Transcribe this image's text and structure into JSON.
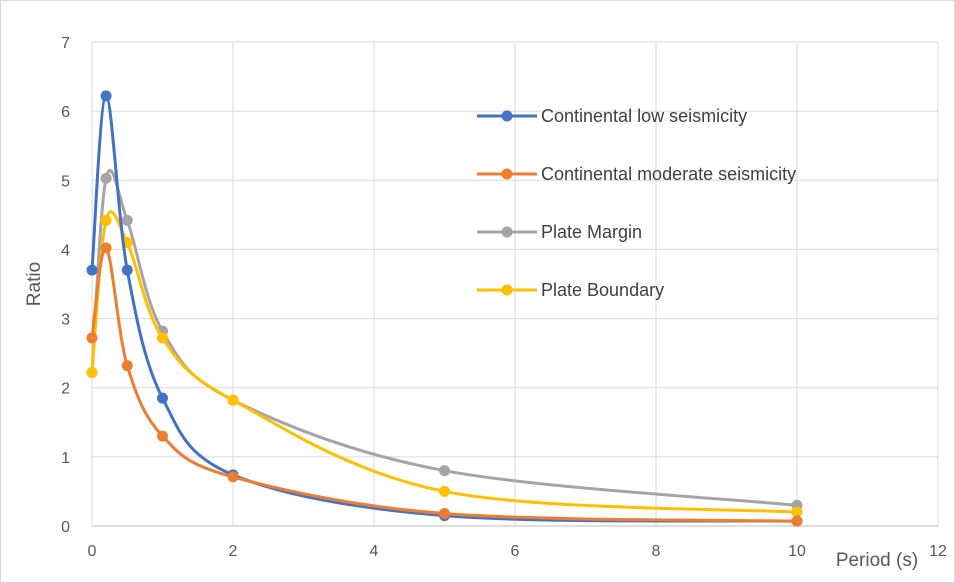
{
  "chart_data": {
    "type": "line",
    "xlabel": "Period (s)",
    "ylabel": "Ratio",
    "xlim": [
      0,
      12
    ],
    "ylim": [
      0,
      7
    ],
    "x_ticks": [
      0,
      2,
      4,
      6,
      8,
      10,
      12
    ],
    "y_ticks": [
      0,
      1,
      2,
      3,
      4,
      5,
      6,
      7
    ],
    "grid": true,
    "legend_position": "top-right",
    "smooth": true,
    "series": [
      {
        "name": "Continental low seismicity",
        "color": "#4472C4",
        "x": [
          0,
          0.2,
          0.5,
          1,
          2,
          5,
          10
        ],
        "y": [
          3.7,
          6.22,
          3.7,
          1.85,
          0.74,
          0.15,
          0.07
        ]
      },
      {
        "name": "Continental moderate seismicity",
        "color": "#ED7D31",
        "x": [
          0,
          0.2,
          0.5,
          1,
          2,
          5,
          10
        ],
        "y": [
          2.72,
          4.02,
          2.32,
          1.3,
          0.71,
          0.18,
          0.07
        ]
      },
      {
        "name": "Plate Margin",
        "color": "#A5A5A5",
        "x": [
          0,
          0.2,
          0.5,
          1,
          2,
          5,
          10
        ],
        "y": [
          2.22,
          5.03,
          4.42,
          2.82,
          1.82,
          0.8,
          0.3
        ]
      },
      {
        "name": "Plate Boundary",
        "color": "#FFC000",
        "x": [
          0,
          0.2,
          0.5,
          1,
          2,
          5,
          10
        ],
        "y": [
          2.22,
          4.42,
          4.1,
          2.72,
          1.82,
          0.5,
          0.2
        ]
      }
    ]
  }
}
